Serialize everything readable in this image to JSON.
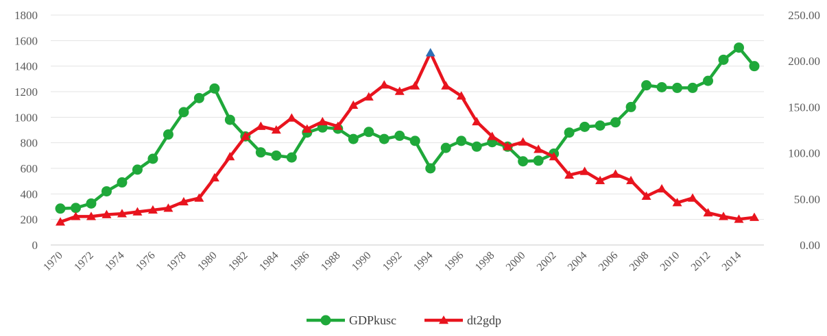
{
  "chart_data": {
    "type": "line",
    "title": "",
    "xlabel": "",
    "ylabel": "",
    "y2label": "",
    "grid": "horizontal",
    "legend_position": "bottom",
    "ylim": [
      0,
      1800
    ],
    "y2lim": [
      0,
      250
    ],
    "y_ticks": [
      "0",
      "200",
      "400",
      "600",
      "800",
      "1000",
      "1200",
      "1400",
      "1600",
      "1800"
    ],
    "y2_ticks": [
      "0.00",
      "50.00",
      "100.00",
      "150.00",
      "200.00",
      "250.00"
    ],
    "x": [
      1970,
      1971,
      1972,
      1973,
      1974,
      1975,
      1976,
      1977,
      1978,
      1979,
      1980,
      1981,
      1982,
      1983,
      1984,
      1985,
      1986,
      1987,
      1988,
      1989,
      1990,
      1991,
      1992,
      1993,
      1994,
      1995,
      1996,
      1997,
      1998,
      1999,
      2000,
      2001,
      2002,
      2003,
      2004,
      2005,
      2006,
      2007,
      2008,
      2009,
      2010,
      2011,
      2012,
      2013,
      2014,
      2015
    ],
    "x_tick_labels": [
      "1970",
      "1972",
      "1974",
      "1976",
      "1978",
      "1980",
      "1982",
      "1984",
      "1986",
      "1988",
      "1990",
      "1992",
      "1994",
      "1996",
      "1998",
      "2000",
      "2002",
      "2004",
      "2006",
      "2008",
      "2010",
      "2012",
      "2014"
    ],
    "series": [
      {
        "name": "GDPkusc",
        "axis": "left",
        "color": "#1fa83a",
        "marker": "circle",
        "values": [
          285,
          290,
          325,
          420,
          490,
          590,
          675,
          865,
          1040,
          1150,
          1225,
          980,
          850,
          725,
          700,
          685,
          880,
          920,
          910,
          830,
          885,
          830,
          855,
          815,
          600,
          760,
          815,
          770,
          805,
          770,
          655,
          660,
          715,
          880,
          925,
          935,
          960,
          1080,
          1250,
          1235,
          1230,
          1230,
          1285,
          1450,
          1545,
          1400
        ]
      },
      {
        "name": "dt2gdp",
        "axis": "right",
        "color": "#e8141e",
        "marker": "triangle",
        "values": [
          25,
          31,
          31,
          33,
          34,
          36,
          38,
          40,
          47,
          51,
          73,
          96,
          118,
          129,
          125,
          138,
          126,
          134,
          129,
          152,
          161,
          174,
          167,
          173,
          209,
          173,
          162,
          134,
          118,
          107,
          112,
          104,
          96,
          76,
          80,
          70,
          77,
          70,
          53,
          61,
          46,
          51,
          35,
          31,
          28,
          30
        ]
      }
    ],
    "highlight": {
      "series": "dt2gdp",
      "x": 1994,
      "color": "#2e6fb5"
    }
  }
}
